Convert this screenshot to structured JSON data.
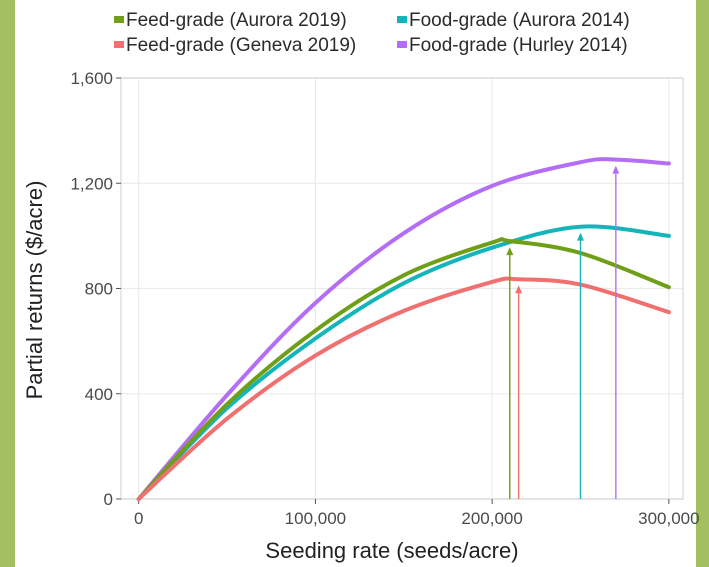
{
  "chart_data": {
    "type": "line",
    "xlabel": "Seeding rate (seeds/acre)",
    "ylabel": "Partial returns ($/acre)",
    "xlim": [
      -10000,
      308000
    ],
    "ylim": [
      0,
      1600
    ],
    "x_ticks": [
      0,
      100000,
      200000,
      300000
    ],
    "x_tick_labels": [
      "0",
      "100,000",
      "200,000",
      "300,000"
    ],
    "y_ticks": [
      0,
      400,
      800,
      1200,
      1600
    ],
    "y_tick_labels": [
      "0",
      "400",
      "800",
      "1,200",
      "1,600"
    ],
    "grid": true,
    "legend_position": "top",
    "series": [
      {
        "name": "Feed-grade (Aurora 2019)",
        "color": "#6e9f16",
        "x": [
          0,
          50000,
          100000,
          150000,
          200000,
          210000,
          250000,
          300000
        ],
        "y": [
          0,
          360,
          640,
          850,
          975,
          980,
          935,
          805
        ],
        "optimum_x": 210000,
        "optimum_y": 980
      },
      {
        "name": "Food-grade (Aurora 2014)",
        "color": "#14b5ba",
        "x": [
          0,
          50000,
          100000,
          150000,
          200000,
          250000,
          300000
        ],
        "y": [
          0,
          345,
          610,
          820,
          955,
          1035,
          1000
        ],
        "optimum_x": 250000,
        "optimum_y": 1035
      },
      {
        "name": "Feed-grade (Geneva 2019)",
        "color": "#f07070",
        "x": [
          0,
          50000,
          100000,
          150000,
          200000,
          215000,
          250000,
          300000
        ],
        "y": [
          0,
          305,
          545,
          715,
          825,
          835,
          815,
          710
        ],
        "optimum_x": 215000,
        "optimum_y": 835
      },
      {
        "name": "Food-grade (Hurley 2014)",
        "color": "#b36ef5",
        "x": [
          0,
          50000,
          100000,
          150000,
          200000,
          250000,
          270000,
          300000
        ],
        "y": [
          0,
          395,
          745,
          1010,
          1190,
          1280,
          1290,
          1275
        ],
        "optimum_x": 270000,
        "optimum_y": 1290
      }
    ]
  }
}
